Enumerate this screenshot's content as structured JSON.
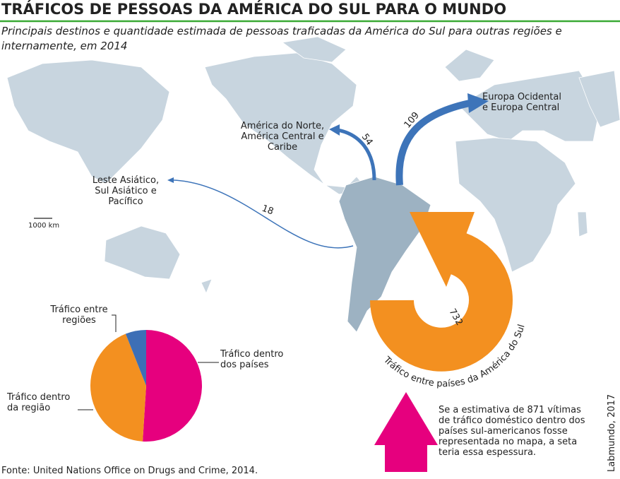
{
  "header": {
    "title": "TRÁFICOS DE PESSOAS DA AMÉRICA DO SUL PARA O MUNDO",
    "subtitle": [
      "Principais destinos e quantidade estimada de pessoas traficadas da América do Sul para outras regiões e",
      "internamente, em 2014"
    ]
  },
  "map": {
    "flows": [
      {
        "destination": [
          "Europa Ocidental",
          "e Europa Central"
        ],
        "value": 109
      },
      {
        "destination": [
          "América do Norte,",
          "América Central e",
          "Caribe"
        ],
        "value": 54
      },
      {
        "destination": [
          "Leste Asiático,",
          "Sul Asiático e",
          "Pacífico"
        ],
        "value": 18
      }
    ],
    "internal": {
      "label": "Tráfico entre países da América do Sul",
      "value": 732
    },
    "scale_bar": "1000 km"
  },
  "pie": {
    "type": "pie",
    "slices": [
      {
        "label": [
          "Tráfico dentro",
          "dos países"
        ],
        "value": 51,
        "color": "#e6007e"
      },
      {
        "label": [
          "Tráfico dentro",
          "da região"
        ],
        "value": 43,
        "color": "#f39020"
      },
      {
        "label": [
          "Tráfico entre",
          "regiões"
        ],
        "value": 6,
        "color": "#3d6fb6"
      }
    ]
  },
  "note": [
    "Se a estimativa de 871 vítimas",
    "de tráfico doméstico dentro dos",
    "países sul-americanos fosse",
    "representada no mapa, a seta",
    "teria essa espessura."
  ],
  "source": "Fonte: United Nations Office on Drugs and Crime, 2014.",
  "credit": "Labmundo, 2017"
}
